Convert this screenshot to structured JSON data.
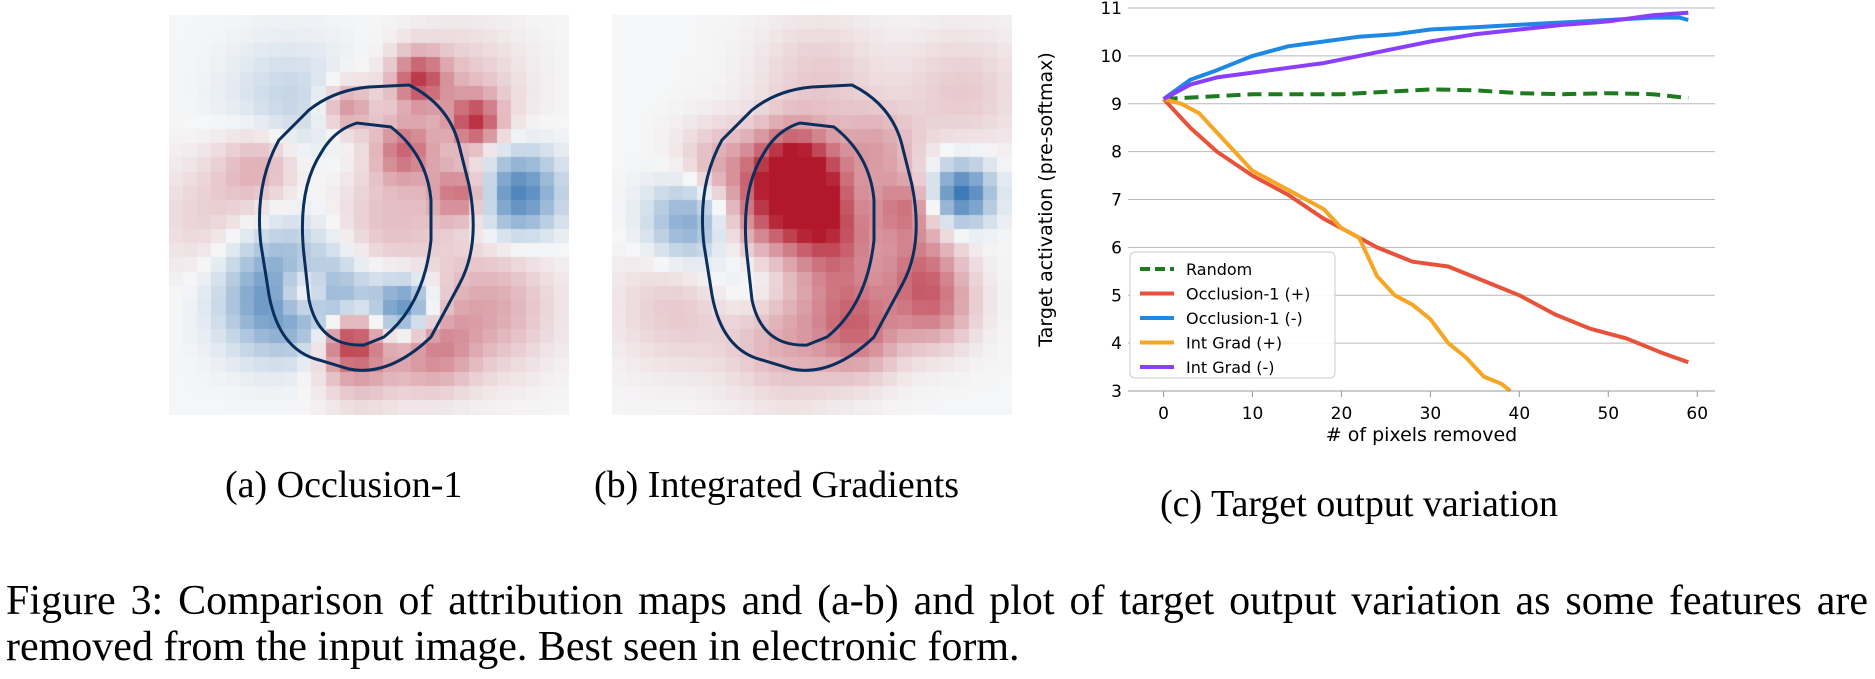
{
  "panels": {
    "a_caption": "(a) Occlusion-1",
    "b_caption": "(b) Integrated Gradients",
    "c_caption": "(c) Target output variation"
  },
  "figure_caption": "Figure 3: Comparison of attribution maps and (a-b) and plot of target output variation as some features are removed from the input image. Best seen in electronic form.",
  "colors": {
    "negative": "#2166ac",
    "positive": "#b2182b",
    "background": "#f5f6f7",
    "contour": "#0b2f5c"
  },
  "chart_data": {
    "type": "line",
    "xlabel": "# of pixels removed",
    "ylabel": "Target activation (pre-softmax)",
    "xlim": [
      -4,
      62
    ],
    "ylim": [
      3,
      11
    ],
    "xticks": [
      0,
      10,
      20,
      30,
      40,
      50,
      60
    ],
    "yticks": [
      3,
      4,
      5,
      6,
      7,
      8,
      9,
      10,
      11
    ],
    "grid": "horizontal",
    "legend_position": "lower-left",
    "series": [
      {
        "name": "Random",
        "color": "#1e7a1e",
        "dashed": true,
        "x": [
          0,
          5,
          10,
          15,
          20,
          25,
          30,
          35,
          40,
          45,
          50,
          55,
          59
        ],
        "y": [
          9.1,
          9.15,
          9.2,
          9.2,
          9.2,
          9.25,
          9.3,
          9.28,
          9.22,
          9.2,
          9.22,
          9.2,
          9.12
        ]
      },
      {
        "name": "Occlusion-1 (+)",
        "color": "#e8523a",
        "dashed": false,
        "x": [
          0,
          3,
          6,
          10,
          14,
          18,
          20,
          24,
          28,
          32,
          36,
          40,
          44,
          48,
          52,
          56,
          59
        ],
        "y": [
          9.1,
          8.5,
          8.0,
          7.5,
          7.1,
          6.6,
          6.4,
          6.0,
          5.7,
          5.6,
          5.3,
          5.0,
          4.6,
          4.3,
          4.1,
          3.8,
          3.6
        ]
      },
      {
        "name": "Occlusion-1 (-)",
        "color": "#1e88e5",
        "dashed": false,
        "x": [
          0,
          3,
          6,
          10,
          14,
          18,
          22,
          26,
          30,
          35,
          40,
          45,
          50,
          55,
          58,
          59
        ],
        "y": [
          9.1,
          9.5,
          9.7,
          10.0,
          10.2,
          10.3,
          10.4,
          10.45,
          10.55,
          10.6,
          10.65,
          10.7,
          10.75,
          10.8,
          10.8,
          10.75
        ]
      },
      {
        "name": "Int Grad (+)",
        "color": "#f5a623",
        "dashed": false,
        "x": [
          0,
          2,
          4,
          6,
          8,
          10,
          14,
          18,
          20,
          22,
          24,
          26,
          28,
          30,
          32,
          34,
          36,
          38,
          39
        ],
        "y": [
          9.1,
          9.0,
          8.8,
          8.4,
          8.0,
          7.6,
          7.2,
          6.8,
          6.4,
          6.2,
          5.4,
          5.0,
          4.8,
          4.5,
          4.0,
          3.7,
          3.3,
          3.15,
          3.0
        ]
      },
      {
        "name": "Int Grad (-)",
        "color": "#8a3ffc",
        "dashed": false,
        "x": [
          0,
          3,
          6,
          10,
          14,
          18,
          22,
          26,
          30,
          35,
          40,
          45,
          50,
          55,
          59
        ],
        "y": [
          9.1,
          9.4,
          9.55,
          9.65,
          9.75,
          9.85,
          10.0,
          10.15,
          10.3,
          10.45,
          10.55,
          10.65,
          10.72,
          10.85,
          10.9
        ]
      }
    ]
  }
}
